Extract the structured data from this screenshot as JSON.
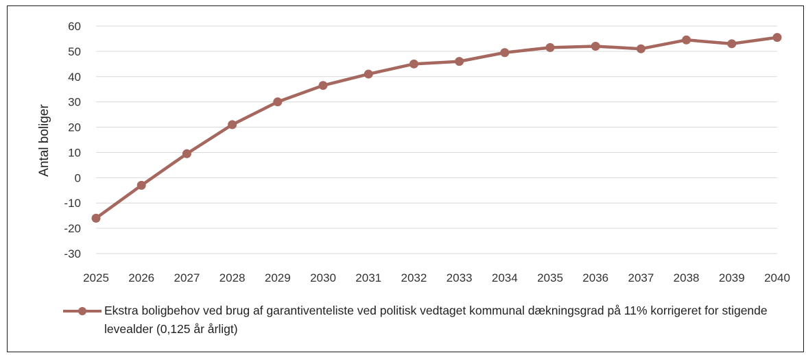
{
  "chart_data": {
    "type": "line",
    "title": "",
    "xlabel": "",
    "ylabel": "Antal boliger",
    "ylim": [
      -30,
      60
    ],
    "yticks": [
      60,
      50,
      40,
      30,
      20,
      10,
      0,
      -10,
      -20,
      -30
    ],
    "grid": true,
    "legend_position": "bottom",
    "categories": [
      "2025",
      "2026",
      "2027",
      "2028",
      "2029",
      "2030",
      "2031",
      "2032",
      "2033",
      "2034",
      "2035",
      "2036",
      "2037",
      "2038",
      "2039",
      "2040"
    ],
    "series": [
      {
        "name": "Ekstra boligbehov ved brug af garantiventeliste ved politisk vedtaget kommunal dækningsgrad på 11% korrigeret for stigende levealder (0,125 år årligt)",
        "color": "#a5675e",
        "values": [
          -16,
          -3,
          9.5,
          21,
          30,
          36.5,
          41,
          45,
          46,
          49.5,
          51.5,
          52,
          51,
          54.5,
          53,
          55.5
        ]
      }
    ]
  }
}
